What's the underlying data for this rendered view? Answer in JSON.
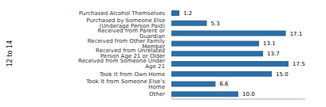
{
  "chart_data": {
    "type": "bar",
    "orientation": "horizontal",
    "ylabel": "12 to 14",
    "categories": [
      "Other",
      "Took It from Someone Else’s Home",
      "Took It from Own Home",
      "Received from Someone Under Age 21",
      "Received from Unrelated Person Age 21 or Older",
      "Received from Other Family Member",
      "Received from Parent or Guardian",
      "Purchased by Someone Else (Underage Person Paid)",
      "Purchased Alcohol Themselves"
    ],
    "values": [
      10.0,
      6.6,
      15.0,
      17.5,
      13.7,
      13.1,
      17.1,
      5.3,
      1.2
    ],
    "value_labels": [
      "10.0",
      "6.6",
      "15.0",
      "17.5",
      "13.7",
      "13.1",
      "17.1",
      "5.3",
      "1.2"
    ],
    "color": "#2E6DA4",
    "xlim": [
      0,
      20
    ],
    "data_labels": true,
    "tick_labels": "y"
  }
}
